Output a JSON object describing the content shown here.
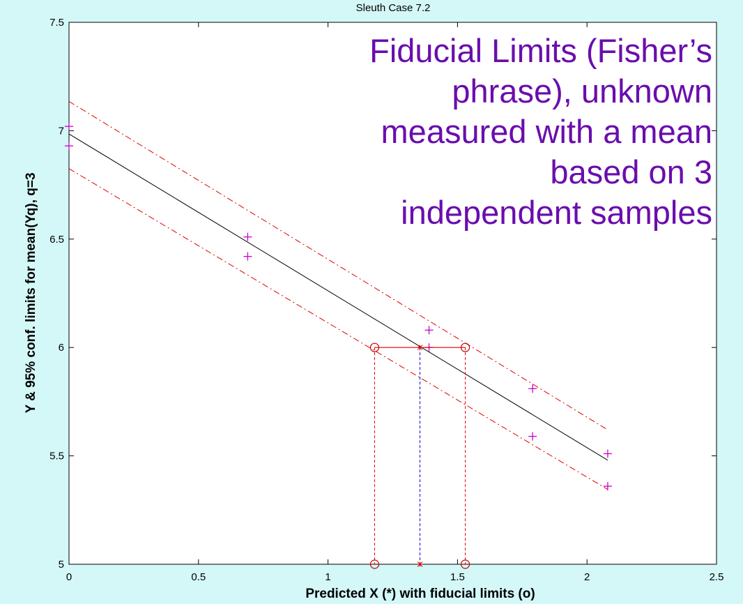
{
  "chart_data": {
    "type": "line",
    "title": "Sleuth Case 7.2",
    "xlabel": "Predicted X (*) with fiducial limits (o)",
    "ylabel": "Y & 95% conf. limits for mean(Yq), q=3",
    "xlim": [
      0,
      2.5
    ],
    "ylim": [
      5,
      7.5
    ],
    "x_ticks": [
      0,
      0.5,
      1,
      1.5,
      2,
      2.5
    ],
    "x_tick_labels": [
      "0",
      "0.5",
      "1",
      "1.5",
      "2",
      "2.5"
    ],
    "y_ticks": [
      5,
      5.5,
      6,
      6.5,
      7,
      7.5
    ],
    "y_tick_labels": [
      "5",
      "5.5",
      "6",
      "6.5",
      "7",
      "7.5"
    ],
    "grid": false,
    "annotation_lines": [
      "Fiducial Limits (Fisher’s",
      "phrase), unknown",
      "measured with a mean",
      "based on 3",
      "independent samples"
    ],
    "series": [
      {
        "style": "line",
        "color": "#000000",
        "dash": "solid",
        "x": [
          0,
          2.08
        ],
        "y": [
          6.985,
          5.48
        ]
      },
      {
        "style": "line",
        "color": "#e00000",
        "dash": "dashdot",
        "x": [
          0,
          2.08
        ],
        "y": [
          7.135,
          5.62
        ]
      },
      {
        "style": "line",
        "color": "#e00000",
        "dash": "dashdot",
        "x": [
          0,
          2.08
        ],
        "y": [
          6.825,
          5.345
        ]
      },
      {
        "style": "markers",
        "marker": "plus",
        "color": "#cc00cc",
        "x": [
          0,
          0,
          0.69,
          0.69,
          1.39,
          1.39,
          1.79,
          1.79,
          2.08,
          2.08
        ],
        "y": [
          7.02,
          6.93,
          6.51,
          6.42,
          6.08,
          6.0,
          5.81,
          5.59,
          5.51,
          5.36
        ]
      }
    ],
    "fiducial": {
      "y0": 6.0,
      "x_pred": 1.355,
      "x_lower": 1.18,
      "x_upper": 1.53,
      "lower_color": "#e00000",
      "pred_color": "#0000cc",
      "circle_color": "#cc0000"
    }
  }
}
